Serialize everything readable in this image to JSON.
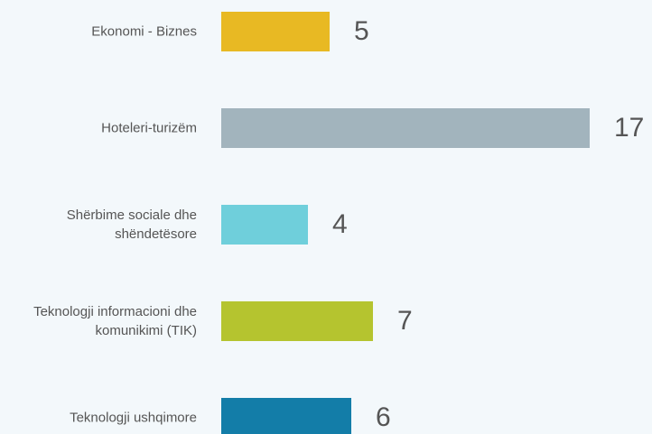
{
  "chart_data": {
    "type": "bar",
    "orientation": "horizontal",
    "categories": [
      "Ekonomi - Biznes",
      "Hoteleri-turizëm",
      "Shërbime sociale dhe shëndetësore",
      "Teknologji informacioni dhe komunikimi (TIK)",
      "Teknologji ushqimore"
    ],
    "values": [
      5,
      17,
      4,
      7,
      6
    ],
    "colors": [
      "#e8b923",
      "#a2b4bd",
      "#6fcfdb",
      "#b5c42f",
      "#137da8"
    ]
  }
}
